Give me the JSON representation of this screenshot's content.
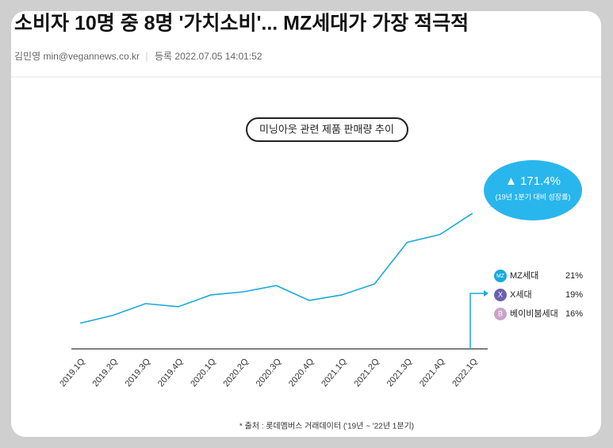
{
  "header": {
    "headline": "소비자 10명 중 8명 '가치소비'... MZ세대가 가장 적극적",
    "author": "김민영 min@vegannews.co.kr",
    "date_label": "등록 2022.07.05 14:01:52"
  },
  "chart_data": {
    "type": "line",
    "title": "미닝아웃 관련 제품 판매량 추이",
    "categories": [
      "2019.1Q",
      "2019.2Q",
      "2019.3Q",
      "2019.4Q",
      "2020.1Q",
      "2020.2Q",
      "2020.3Q",
      "2020.4Q",
      "2021.1Q",
      "2021.2Q",
      "2021.3Q",
      "2021.4Q",
      "2022.1Q"
    ],
    "series": [
      {
        "name": "판매량",
        "color": "#1aa8dc",
        "values": [
          100,
          112.2,
          130.6,
          125.7,
          144.1,
          149.0,
          158.7,
          135.5,
          144.1,
          161.2,
          226.1,
          238.3,
          271.4
        ]
      }
    ],
    "ylim": [
      60,
      280
    ],
    "callout": {
      "value": 171.4,
      "label": "▲ 171.4%",
      "note": "(19년 1분기 대비 성장률)",
      "color": "#29b6ec"
    },
    "shares": [
      {
        "icon": "MZ",
        "name": "MZ세대",
        "value": 21,
        "label": "21%",
        "color": "#1aa8dc"
      },
      {
        "icon": "X",
        "name": "X세대",
        "value": 19,
        "label": "19%",
        "color": "#6d5fb0"
      },
      {
        "icon": "B",
        "name": "베이비붐세대",
        "value": 16,
        "label": "16%",
        "color": "#c9a3c9"
      }
    ],
    "source": "* 출처 : 롯데멤버스 거래데이터 ('19년 ~ '22년 1분기)"
  }
}
